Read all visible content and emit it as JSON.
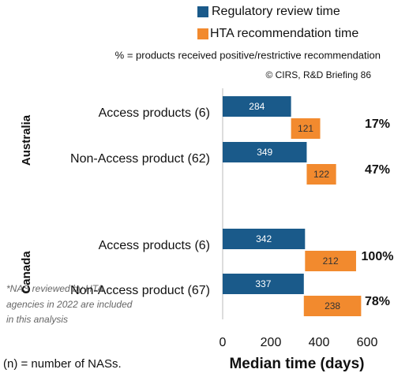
{
  "chart_data": {
    "type": "bar",
    "orientation": "horizontal",
    "source": "© CIRS, R&D Briefing 86",
    "note": "% = products received positive/restrictive recommendation",
    "footnote": [
      "*NAS reviewed by HTA",
      "agencies in 2022 are included",
      "in this analysis"
    ],
    "key": "(n) = number of NASs.",
    "xlabel": "Median time (days)",
    "groups": [
      "Australia",
      "Canada"
    ],
    "categories": [
      "Access products (6)",
      "Non-Access product (62)",
      "Access products (6)",
      "Non-Access product (67)"
    ],
    "category_groups": [
      0,
      0,
      1,
      1
    ],
    "series": [
      {
        "name": "Regulatory review time",
        "color": "#1a5a8a",
        "values": [
          284,
          349,
          342,
          337
        ]
      },
      {
        "name": "HTA recommendation time",
        "color": "#f28a2e",
        "values": [
          121,
          122,
          212,
          238
        ]
      }
    ],
    "positive_share": {
      "values": [
        17,
        47,
        100,
        78
      ],
      "value_labels": [
        "17%",
        "47%",
        "100%",
        "78%"
      ]
    },
    "xlim": [
      0,
      600
    ],
    "xticks": [
      0,
      200,
      400,
      600
    ]
  }
}
